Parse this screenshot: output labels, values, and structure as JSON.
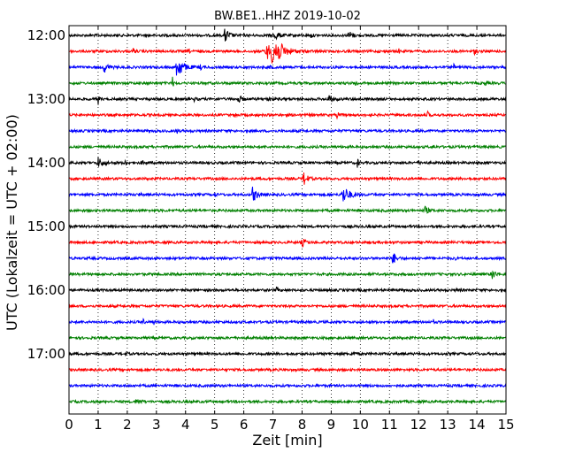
{
  "chart_data": {
    "type": "line",
    "title": "BW.BE1..HHZ 2019-10-02",
    "xlabel": "Zeit  [min]",
    "ylabel": "UTC (Lokalzeit = UTC + 02:00)",
    "xlim": [
      0,
      15
    ],
    "x_ticks": [
      "0",
      "1",
      "2",
      "3",
      "4",
      "5",
      "6",
      "7",
      "8",
      "9",
      "10",
      "11",
      "12",
      "13",
      "14",
      "15"
    ],
    "y_ticks": [
      "12:00",
      "13:00",
      "14:00",
      "15:00",
      "16:00",
      "17:00"
    ],
    "grid": true,
    "colors": [
      "#000000",
      "#ff0000",
      "#0000ff",
      "#008000"
    ],
    "traces": [
      {
        "time": "12:00",
        "color": "#000000",
        "events": [
          [
            5.35,
            9,
            0.12
          ],
          [
            7.05,
            5,
            0.15
          ],
          [
            9.6,
            6,
            0.1
          ],
          [
            8.3,
            3,
            0.05
          ]
        ]
      },
      {
        "time": "12:15",
        "color": "#ff0000",
        "events": [
          [
            7.0,
            18,
            0.25
          ],
          [
            6.8,
            8,
            0.3
          ],
          [
            2.2,
            3,
            0.05
          ],
          [
            4.1,
            2,
            0.05
          ],
          [
            11.3,
            5,
            0.03
          ],
          [
            13.9,
            3,
            0.08
          ]
        ]
      },
      {
        "time": "12:30",
        "color": "#0000ff",
        "events": [
          [
            3.7,
            14,
            0.18
          ],
          [
            1.2,
            6,
            0.12
          ],
          [
            4.5,
            3,
            0.05
          ],
          [
            6.9,
            3,
            0.05
          ],
          [
            13.2,
            4,
            0.03
          ]
        ]
      },
      {
        "time": "12:45",
        "color": "#008000",
        "events": [
          [
            3.55,
            7,
            0.03
          ],
          [
            9.8,
            4,
            0.08
          ],
          [
            14.3,
            4,
            0.03
          ],
          [
            7.0,
            3,
            0.03
          ]
        ]
      },
      {
        "time": "13:00",
        "color": "#000000",
        "events": [
          [
            1.0,
            6,
            0.03
          ],
          [
            5.8,
            5,
            0.1
          ],
          [
            6.8,
            4,
            0.08
          ],
          [
            8.9,
            5,
            0.12
          ],
          [
            4.3,
            2.5,
            0.05
          ]
        ]
      },
      {
        "time": "13:15",
        "color": "#ff0000",
        "events": [
          [
            9.2,
            7,
            0.04
          ],
          [
            12.3,
            5,
            0.04
          ],
          [
            5.7,
            3,
            0.04
          ]
        ]
      },
      {
        "time": "13:30",
        "color": "#0000ff",
        "events": [
          [
            3.7,
            4,
            0.04
          ]
        ]
      },
      {
        "time": "13:45",
        "color": "#008000",
        "events": [
          [
            12.5,
            2,
            0.05
          ]
        ]
      },
      {
        "time": "14:00",
        "color": "#000000",
        "events": [
          [
            1.0,
            6,
            0.15
          ],
          [
            1.9,
            4,
            0.05
          ],
          [
            2.5,
            3,
            0.05
          ],
          [
            9.9,
            7,
            0.03
          ],
          [
            12.0,
            3,
            0.05
          ]
        ]
      },
      {
        "time": "14:15",
        "color": "#ff0000",
        "events": [
          [
            8.05,
            9,
            0.1
          ]
        ]
      },
      {
        "time": "14:30",
        "color": "#0000ff",
        "events": [
          [
            6.3,
            9,
            0.12
          ],
          [
            9.4,
            10,
            0.2
          ],
          [
            2.4,
            3,
            0.04
          ],
          [
            5.0,
            3,
            0.04
          ]
        ]
      },
      {
        "time": "14:45",
        "color": "#008000",
        "events": [
          [
            12.2,
            5,
            0.1
          ]
        ]
      },
      {
        "time": "15:00",
        "color": "#000000",
        "events": []
      },
      {
        "time": "15:15",
        "color": "#ff0000",
        "events": [
          [
            8.0,
            5,
            0.1
          ]
        ]
      },
      {
        "time": "15:30",
        "color": "#0000ff",
        "events": [
          [
            11.1,
            8,
            0.1
          ],
          [
            13.2,
            3,
            0.05
          ]
        ]
      },
      {
        "time": "15:45",
        "color": "#008000",
        "events": [
          [
            14.5,
            7,
            0.1
          ]
        ]
      },
      {
        "time": "16:00",
        "color": "#000000",
        "events": [
          [
            7.1,
            4,
            0.05
          ],
          [
            13.3,
            2,
            0.05
          ]
        ]
      },
      {
        "time": "16:15",
        "color": "#ff0000",
        "events": []
      },
      {
        "time": "16:30",
        "color": "#0000ff",
        "events": [
          [
            2.55,
            4,
            0.03
          ],
          [
            2.9,
            4,
            0.03
          ],
          [
            12.5,
            3,
            0.03
          ]
        ]
      },
      {
        "time": "16:45",
        "color": "#008000",
        "events": []
      },
      {
        "time": "17:00",
        "color": "#000000",
        "events": [
          [
            1.95,
            4,
            0.03
          ],
          [
            9.7,
            2,
            0.1
          ]
        ]
      },
      {
        "time": "17:15",
        "color": "#ff0000",
        "events": []
      },
      {
        "time": "17:30",
        "color": "#0000ff",
        "events": []
      },
      {
        "time": "17:45",
        "color": "#008000",
        "events": [
          [
            2.3,
            4,
            0.1
          ]
        ]
      }
    ]
  }
}
